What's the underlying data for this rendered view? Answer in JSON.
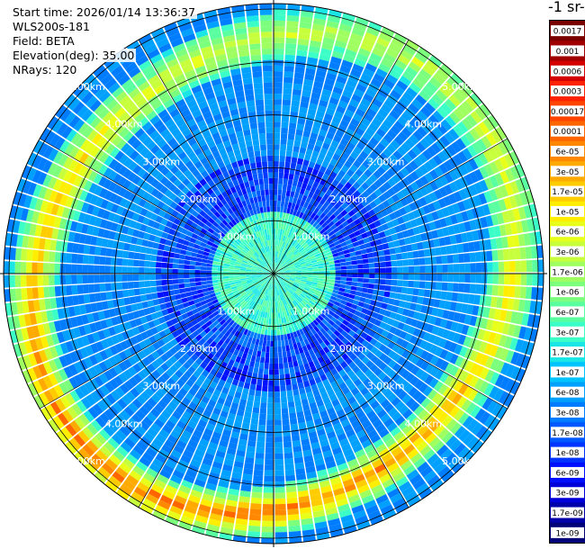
{
  "info": {
    "start_time": "Start time: 2026/01/14 13:36:37",
    "instrument": "WLS200s-181",
    "field": "Field: BETA",
    "elevation": "Elevation(deg): 35.00",
    "nrays": "NRays: 120"
  },
  "legend_title": "-1 sr-",
  "chart_data": {
    "type": "polar-ppi",
    "rays": 120,
    "range_rings_km": [
      1.0,
      2.0,
      3.0,
      4.0,
      5.0
    ],
    "range_ring_labels": [
      "1.00km",
      "2.00km",
      "3.00km",
      "4.00km",
      "5.00km"
    ],
    "max_range_km": 5.0,
    "grid": true,
    "legend_placement": "right",
    "colorbar": {
      "labels": [
        "0.0017",
        "0.001",
        "0.0006",
        "0.0003",
        "0.00017",
        "0.0001",
        "6e-05",
        "3e-05",
        "1.7e-05",
        "1e-05",
        "6e-06",
        "3e-06",
        "1.7e-06",
        "1e-06",
        "6e-07",
        "3e-07",
        "1.7e-07",
        "1e-07",
        "6e-08",
        "3e-08",
        "1.7e-08",
        "1e-08",
        "6e-09",
        "3e-09",
        "1.7e-09",
        "1e-09"
      ],
      "colors": [
        "#7a0000",
        "#a00000",
        "#d40000",
        "#ff2200",
        "#ff4400",
        "#ff6600",
        "#ff8800",
        "#ffaa00",
        "#ffcc00",
        "#ffee00",
        "#e8ff1a",
        "#c8ff3c",
        "#a0ff60",
        "#7cff7c",
        "#5affa0",
        "#3cffc8",
        "#1ae6e6",
        "#00c4ff",
        "#00a0ff",
        "#007cff",
        "#0058ff",
        "#0034ff",
        "#0010ff",
        "#0000d8",
        "#0000aa",
        "#000078"
      ]
    },
    "high_backscatter_band_km": [
      4.5,
      5.5
    ]
  }
}
